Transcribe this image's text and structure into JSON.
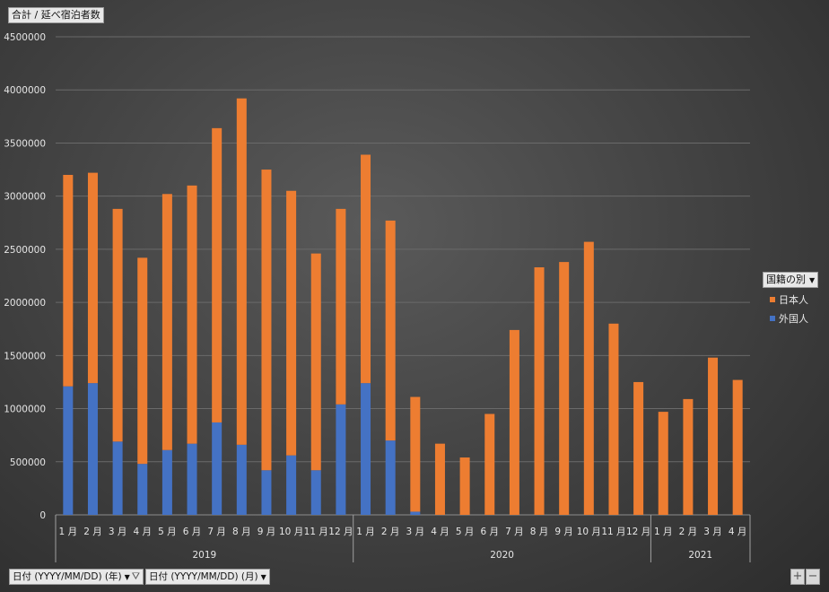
{
  "value_field": "合計 / 延べ宿泊者数",
  "legend": {
    "title": "国籍の別",
    "items": [
      {
        "label": "日本人",
        "color": "#ed7d31"
      },
      {
        "label": "外国人",
        "color": "#4472c4"
      }
    ]
  },
  "filters": {
    "year_button": "日付 (YYYY/MM/DD) (年)",
    "month_button": "日付 (YYYY/MM/DD) (月)"
  },
  "zoom": {
    "plus": "+",
    "minus": "−"
  },
  "chart_data": {
    "type": "bar",
    "stacked": true,
    "ylim": [
      0,
      4500000
    ],
    "yticks": [
      0,
      500000,
      1000000,
      1500000,
      2000000,
      2500000,
      3000000,
      3500000,
      4000000,
      4500000
    ],
    "grid": true,
    "legend_position": "right",
    "groups": [
      {
        "label": "2019",
        "count": 12
      },
      {
        "label": "2020",
        "count": 12
      },
      {
        "label": "2021",
        "count": 4
      }
    ],
    "categories": [
      "1 月",
      "2 月",
      "3 月",
      "4 月",
      "5 月",
      "6 月",
      "7 月",
      "8 月",
      "9 月",
      "10 月",
      "11 月",
      "12 月",
      "1 月",
      "2 月",
      "3 月",
      "4 月",
      "5 月",
      "6 月",
      "7 月",
      "8 月",
      "9 月",
      "10 月",
      "11 月",
      "12 月",
      "1 月",
      "2 月",
      "3 月",
      "4 月"
    ],
    "series": [
      {
        "name": "外国人",
        "color": "#4472c4",
        "values": [
          1210000,
          1240000,
          690000,
          480000,
          610000,
          670000,
          870000,
          660000,
          420000,
          560000,
          420000,
          1040000,
          1240000,
          700000,
          30000,
          0,
          0,
          0,
          0,
          0,
          0,
          0,
          0,
          0,
          0,
          0,
          0,
          0
        ]
      },
      {
        "name": "日本人",
        "color": "#ed7d31",
        "values": [
          1990000,
          1980000,
          2190000,
          1940000,
          2410000,
          2430000,
          2770000,
          3260000,
          2830000,
          2490000,
          2040000,
          1840000,
          2150000,
          2070000,
          1080000,
          670000,
          540000,
          950000,
          1740000,
          2330000,
          2380000,
          2570000,
          1800000,
          1250000,
          970000,
          1090000,
          1480000,
          1270000
        ]
      }
    ]
  }
}
